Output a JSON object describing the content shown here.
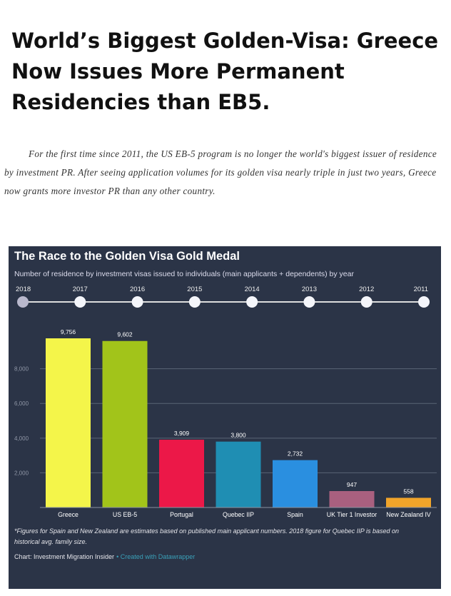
{
  "article": {
    "headline": "World’s Biggest Golden-Visa: Greece Now Issues More Permanent Residencies than EB5.",
    "intro": "For the first time since 2011, the US EB-5 program is no longer the world's biggest issuer of residence by investment PR. After seeing application volumes for its golden visa nearly triple in just two years, Greece now grants more investor PR than any other country."
  },
  "chart_data": {
    "type": "bar",
    "title": "The Race to the Golden Visa Gold Medal",
    "subtitle": "Number of residence by investment visas issued to individuals (main applicants + dependents) by year",
    "timeline": {
      "years": [
        "2018",
        "2017",
        "2016",
        "2015",
        "2014",
        "2013",
        "2012",
        "2011"
      ],
      "selected": "2018"
    },
    "categories": [
      "Greece",
      "US EB-5",
      "Portugal",
      "Quebec IIP",
      "Spain",
      "UK Tier 1 Investor",
      "New Zealand IV"
    ],
    "values": [
      9756,
      9602,
      3909,
      3800,
      2732,
      947,
      558
    ],
    "value_labels": [
      "9,756",
      "9,602",
      "3,909",
      "3,800",
      "2,732",
      "947",
      "558"
    ],
    "colors": [
      "#f4f54a",
      "#a2c41a",
      "#ec1848",
      "#1f8eb3",
      "#2a8fe0",
      "#a9607f",
      "#f0a42a"
    ],
    "yticks": [
      2000,
      4000,
      6000,
      8000
    ],
    "ytick_labels": [
      "2,000",
      "4,000",
      "6,000",
      "8,000"
    ],
    "ylim": [
      0,
      10000
    ],
    "grid": true,
    "footnote": "*Figures for Spain and New Zealand are estimates based on published main applicant numbers. 2018 figure for Quebec IIP is based on historical avg. family size.",
    "source": "Chart: Investment Migration Insider",
    "credit": "• Created with Datawrapper"
  }
}
